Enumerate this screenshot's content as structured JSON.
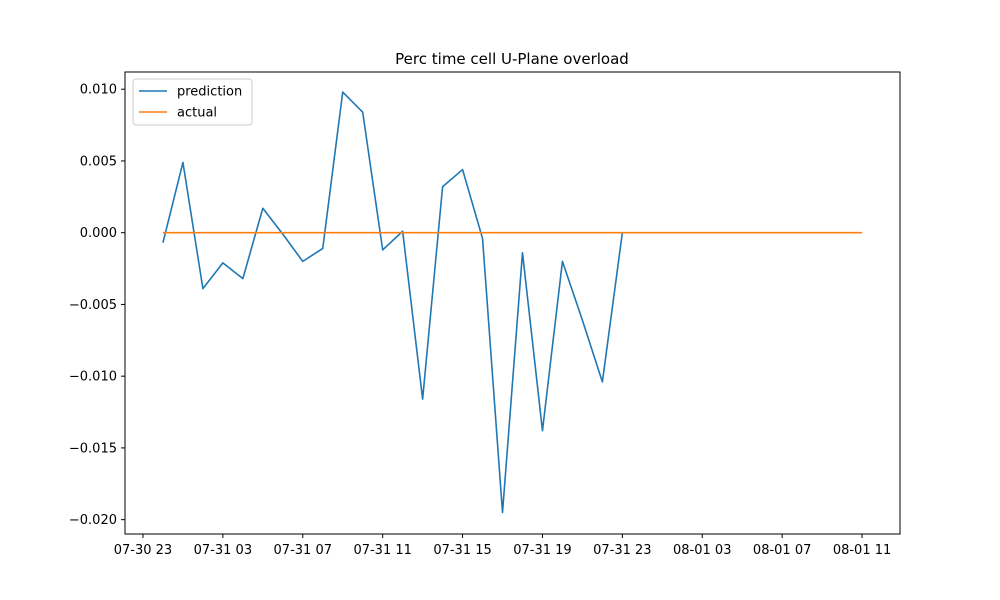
{
  "chart_data": {
    "type": "line",
    "title": "Perc time cell U-Plane overload",
    "xlabel": "",
    "ylabel": "",
    "x_ticks": [
      "07-30 23",
      "07-31 03",
      "07-31 07",
      "07-31 11",
      "07-31 15",
      "07-31 19",
      "07-31 23",
      "08-01 03",
      "08-01 07",
      "08-01 11"
    ],
    "x_ticks_iso": [
      "2023-07-30T23:00",
      "2023-07-31T03:00",
      "2023-07-31T07:00",
      "2023-07-31T11:00",
      "2023-07-31T15:00",
      "2023-07-31T19:00",
      "2023-07-31T23:00",
      "2023-08-01T03:00",
      "2023-08-01T07:00",
      "2023-08-01T11:00"
    ],
    "xlim": [
      "2023-07-30T22:06",
      "2023-08-01T12:54"
    ],
    "y_ticks": [
      0.01,
      0.005,
      0.0,
      -0.005,
      -0.01,
      -0.015,
      -0.02
    ],
    "y_tick_labels": [
      "0.010",
      "0.005",
      "0.000",
      "−0.005",
      "−0.010",
      "−0.015",
      "−0.020"
    ],
    "ylim": [
      -0.021,
      0.0112
    ],
    "legend_position": "top-left",
    "grid": false,
    "series": [
      {
        "name": "prediction",
        "color": "#1f77b4",
        "x": [
          "2023-07-31T00:00",
          "2023-07-31T01:00",
          "2023-07-31T02:00",
          "2023-07-31T03:00",
          "2023-07-31T04:00",
          "2023-07-31T05:00",
          "2023-07-31T06:00",
          "2023-07-31T07:00",
          "2023-07-31T08:00",
          "2023-07-31T09:00",
          "2023-07-31T10:00",
          "2023-07-31T11:00",
          "2023-07-31T12:00",
          "2023-07-31T13:00",
          "2023-07-31T14:00",
          "2023-07-31T15:00",
          "2023-07-31T16:00",
          "2023-07-31T17:00",
          "2023-07-31T18:00",
          "2023-07-31T19:00",
          "2023-07-31T20:00",
          "2023-07-31T21:00",
          "2023-07-31T22:00",
          "2023-07-31T23:00"
        ],
        "y": [
          -0.0007,
          0.0049,
          -0.0039,
          -0.0021,
          -0.0032,
          0.0017,
          -0.0001,
          -0.002,
          -0.0011,
          0.0098,
          0.0084,
          -0.0012,
          0.0001,
          -0.0116,
          0.0032,
          0.0044,
          -0.0004,
          -0.0195,
          -0.0014,
          -0.0138,
          -0.002,
          -0.0061,
          -0.0104,
          0.0
        ]
      },
      {
        "name": "actual",
        "color": "#ff7f0e",
        "x": [
          "2023-07-31T00:00",
          "2023-08-01T11:00"
        ],
        "y": [
          0.0,
          0.0
        ]
      }
    ]
  }
}
